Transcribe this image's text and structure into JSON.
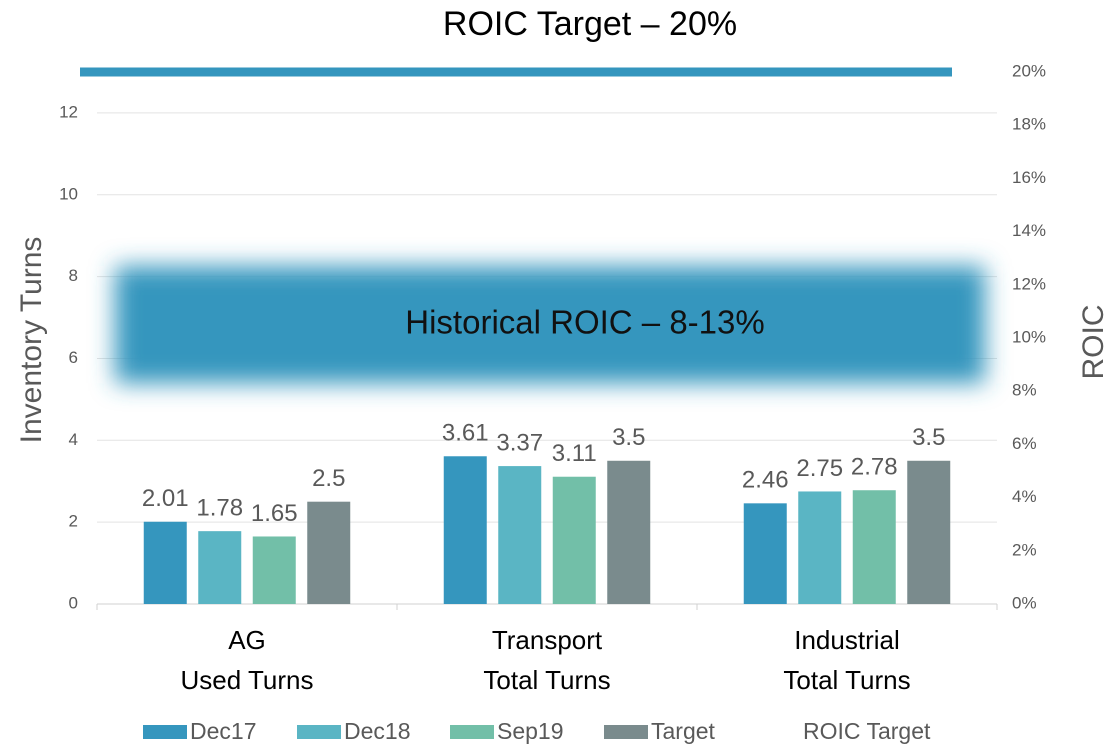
{
  "chart_data": {
    "type": "bar",
    "title": "ROIC Target – 20%",
    "categories": [
      [
        "AG",
        "Used Turns"
      ],
      [
        "Transport",
        "Total Turns"
      ],
      [
        "Industrial",
        "Total Turns"
      ]
    ],
    "series": [
      {
        "name": "Dec17",
        "color": "#3596be",
        "values": [
          2.01,
          3.61,
          2.46
        ]
      },
      {
        "name": "Dec18",
        "color": "#5ab5c4",
        "values": [
          1.78,
          3.37,
          2.75
        ]
      },
      {
        "name": "Sep19",
        "color": "#72bfa8",
        "values": [
          1.65,
          3.11,
          2.78
        ]
      },
      {
        "name": "Target",
        "color": "#7a8b8d",
        "values": [
          2.5,
          3.5,
          3.5
        ]
      },
      {
        "name": "ROIC Target",
        "color": "#3596be",
        "type": "line",
        "axis": "y2",
        "values": [
          20,
          20,
          20
        ]
      }
    ],
    "band": {
      "label": "Historical ROIC –  8-13%",
      "range": [
        8,
        13
      ],
      "axis": "y2",
      "color": "#3596be"
    },
    "ylabel": "Inventory Turns",
    "y2label": "ROIC",
    "ylim": [
      0,
      13
    ],
    "yticks": [
      0,
      2,
      4,
      6,
      8,
      10,
      12
    ],
    "y2lim": [
      0,
      20
    ],
    "y2ticks": [
      {
        "value": 0,
        "label": "0%"
      },
      {
        "value": 2,
        "label": "2%"
      },
      {
        "value": 4,
        "label": "4%"
      },
      {
        "value": 6,
        "label": "6%"
      },
      {
        "value": 8,
        "label": "8%"
      },
      {
        "value": 10,
        "label": "10%"
      },
      {
        "value": 12,
        "label": "12%"
      },
      {
        "value": 14,
        "label": "14%"
      },
      {
        "value": 16,
        "label": "16%"
      },
      {
        "value": 18,
        "label": "18%"
      },
      {
        "value": 20,
        "label": "20%"
      }
    ],
    "grid": true,
    "legend": "bottom"
  }
}
